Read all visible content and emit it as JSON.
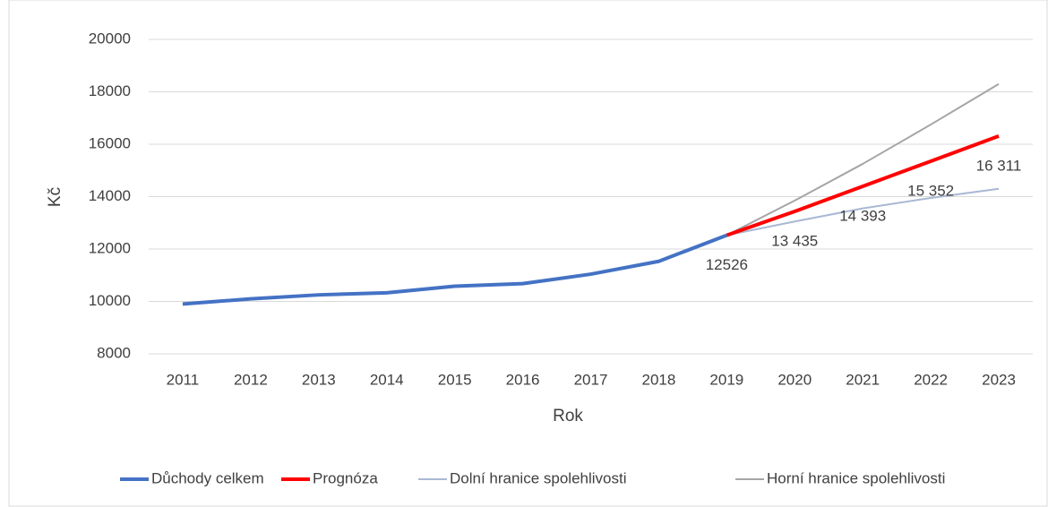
{
  "chart_data": {
    "type": "line",
    "x_label": "Rok",
    "y_label": "Kč",
    "categories": [
      "2011",
      "2012",
      "2013",
      "2014",
      "2015",
      "2016",
      "2017",
      "2018",
      "2019",
      "2020",
      "2021",
      "2022",
      "2023"
    ],
    "series": [
      {
        "name": "Důchody celkem",
        "color": "#4472c4",
        "values": [
          9900,
          10100,
          10250,
          10330,
          10580,
          10680,
          11040,
          11530,
          12526,
          null,
          null,
          null,
          null
        ]
      },
      {
        "name": "Prognóza",
        "color": "#ff0000",
        "values": [
          null,
          null,
          null,
          null,
          null,
          null,
          null,
          null,
          12526,
          13435,
          14393,
          15352,
          16311
        ],
        "value_labels": [
          null,
          null,
          null,
          null,
          null,
          null,
          null,
          null,
          "12526",
          "13 435",
          "14 393",
          "15 352",
          "16 311"
        ]
      },
      {
        "name": "Dolní hranice spolehlivosti",
        "color": "#a9b8d3",
        "values": [
          null,
          null,
          null,
          null,
          null,
          null,
          null,
          null,
          12526,
          13050,
          13550,
          13950,
          14300
        ]
      },
      {
        "name": "Horní hranice spolehlivosti",
        "color": "#a5a5a5",
        "values": [
          null,
          null,
          null,
          null,
          null,
          null,
          null,
          null,
          12526,
          13850,
          15250,
          16750,
          18300
        ]
      }
    ],
    "ylim": [
      8000,
      20000
    ],
    "yticks": [
      8000,
      10000,
      12000,
      14000,
      16000,
      18000,
      20000
    ],
    "grid": true,
    "legend": "bottom"
  }
}
